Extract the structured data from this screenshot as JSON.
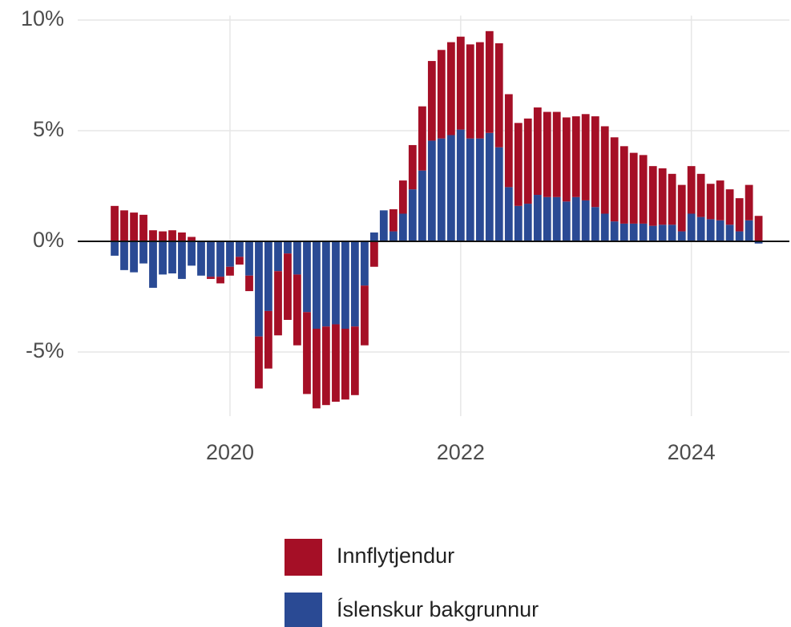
{
  "chart_data": {
    "type": "bar",
    "stacked": true,
    "x": [
      2019,
      2019.083,
      2019.167,
      2019.25,
      2019.333,
      2019.417,
      2019.5,
      2019.583,
      2019.667,
      2019.75,
      2019.833,
      2019.917,
      2020,
      2020.083,
      2020.167,
      2020.25,
      2020.333,
      2020.417,
      2020.5,
      2020.583,
      2020.667,
      2020.75,
      2020.833,
      2020.917,
      2021,
      2021.083,
      2021.167,
      2021.25,
      2021.333,
      2021.417,
      2021.5,
      2021.583,
      2021.667,
      2021.75,
      2021.833,
      2021.917,
      2022,
      2022.083,
      2022.167,
      2022.25,
      2022.333,
      2022.417,
      2022.5,
      2022.583,
      2022.667,
      2022.75,
      2022.833,
      2022.917,
      2023,
      2023.083,
      2023.167,
      2023.25,
      2023.333,
      2023.417,
      2023.5,
      2023.583,
      2023.667,
      2023.75,
      2023.833,
      2023.917,
      2024,
      2024.083,
      2024.167,
      2024.25,
      2024.333,
      2024.417,
      2024.5,
      2024.583
    ],
    "series": [
      {
        "name": "Innflytjendur",
        "color": "#a50f26",
        "values": [
          1.6,
          1.4,
          1.3,
          1.2,
          0.5,
          0.45,
          0.5,
          0.4,
          0.2,
          0,
          -0.1,
          -0.3,
          -0.4,
          -0.35,
          -0.7,
          -2.35,
          -2.6,
          -2.9,
          -3.0,
          -3.2,
          -3.7,
          -3.6,
          -3.55,
          -3.5,
          -3.2,
          -3.1,
          -2.7,
          -1.15,
          0,
          1.0,
          1.5,
          2.0,
          2.9,
          3.6,
          4.0,
          4.2,
          4.2,
          4.25,
          4.35,
          4.6,
          4.7,
          4.2,
          3.75,
          3.85,
          3.95,
          3.85,
          3.85,
          3.8,
          3.65,
          3.9,
          4.1,
          3.95,
          3.8,
          3.5,
          3.2,
          3.1,
          2.7,
          2.55,
          2.3,
          2.1,
          2.15,
          1.95,
          1.6,
          1.8,
          1.6,
          1.5,
          1.6,
          1.15
        ]
      },
      {
        "name": "Íslenskur bakgrunnur",
        "color": "#2a4a94",
        "values": [
          -0.65,
          -1.3,
          -1.4,
          -1.0,
          -2.1,
          -1.5,
          -1.45,
          -1.7,
          -1.1,
          -1.55,
          -1.6,
          -1.6,
          -1.15,
          -0.7,
          -1.55,
          -4.3,
          -3.15,
          -1.35,
          -0.55,
          -1.5,
          -3.2,
          -3.95,
          -3.85,
          -3.75,
          -3.95,
          -3.85,
          -2.0,
          0.4,
          1.4,
          0.45,
          1.25,
          2.35,
          3.2,
          4.55,
          4.65,
          4.8,
          5.05,
          4.65,
          4.65,
          4.9,
          4.25,
          2.45,
          1.6,
          1.7,
          2.1,
          2.0,
          2.0,
          1.8,
          2.0,
          1.85,
          1.55,
          1.25,
          0.9,
          0.8,
          0.8,
          0.8,
          0.7,
          0.75,
          0.75,
          0.45,
          1.25,
          1.1,
          1.0,
          0.95,
          0.75,
          0.45,
          0.95,
          -0.1
        ]
      }
    ],
    "xlim": [
      2018.68,
      2024.85
    ],
    "xticks": [
      2020,
      2022,
      2024
    ],
    "ylim": [
      -7.9,
      10.2
    ],
    "yticks": [
      {
        "value": -5,
        "label": "-5%"
      },
      {
        "value": 0,
        "label": "0%"
      },
      {
        "value": 5,
        "label": "5%"
      },
      {
        "value": 10,
        "label": "10%"
      }
    ],
    "grid": true,
    "legend": "bottom"
  }
}
